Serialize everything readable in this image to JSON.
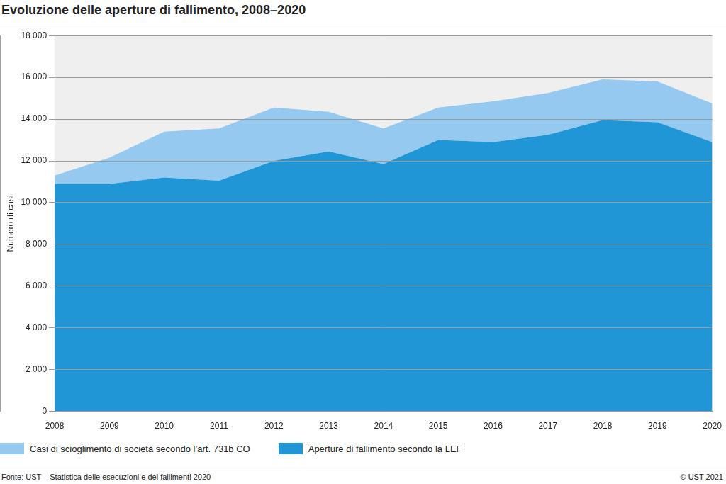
{
  "chart_data": {
    "type": "area",
    "title": "Evoluzione delle aperture di fallimento, 2008–2020",
    "y_label": "Numero di casi",
    "source": "Fonte: UST – Statistica delle esecuzioni e dei fallimenti 2020",
    "copyright": "© UST 2021",
    "categories": [
      "2008",
      "2009",
      "2010",
      "2011",
      "2012",
      "2013",
      "2014",
      "2015",
      "2016",
      "2017",
      "2018",
      "2019",
      "2020"
    ],
    "series": [
      {
        "name": "Aperture di fallimento secondo la LEF",
        "color": "#2196d6",
        "values": [
          10900,
          10900,
          11200,
          11050,
          12000,
          12450,
          11850,
          13000,
          12900,
          13250,
          13950,
          13850,
          12900
        ]
      },
      {
        "name": "Casi di scioglimento di società secondo l’art. 731b CO",
        "color": "#95c9ef",
        "values": [
          400,
          1250,
          2200,
          2500,
          2550,
          1900,
          1700,
          1550,
          1950,
          2000,
          1950,
          1950,
          1850
        ]
      }
    ],
    "stacked": true,
    "grid": true,
    "legend": "bottom",
    "ylim": [
      0,
      18000
    ],
    "yticks": [
      0,
      {
        "value": 2000,
        "label": "2 000"
      },
      {
        "value": 4000,
        "label": "4 000"
      },
      {
        "value": 6000,
        "label": "6 000"
      },
      {
        "value": 8000,
        "label": "8 000"
      },
      {
        "value": 10000,
        "label": "10 000"
      },
      {
        "value": 12000,
        "label": "12 000"
      },
      {
        "value": 14000,
        "label": "14 000"
      },
      {
        "value": 16000,
        "label": "16 000"
      },
      {
        "value": 18000,
        "label": "18 000"
      }
    ]
  }
}
